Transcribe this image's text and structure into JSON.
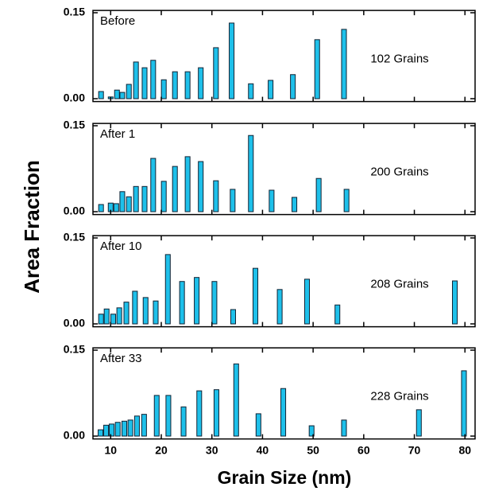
{
  "xlabel": "Grain Size (nm)",
  "ylabel": "Area Fraction",
  "chart_data": [
    {
      "type": "bar",
      "title": "Before",
      "annotation": "102 Grains",
      "color": "#1ec0ea",
      "x": [
        8.1,
        10,
        11.25,
        12.3,
        13.6,
        15,
        16.7,
        18.4,
        20.5,
        22.7,
        25.2,
        27.8,
        30.8,
        33.9,
        37.7,
        41.6,
        46,
        50.8,
        56.1
      ],
      "values": [
        0.0125,
        0.003,
        0.015,
        0.011,
        0.025,
        0.064,
        0.054,
        0.067,
        0.033,
        0.047,
        0.047,
        0.054,
        0.089,
        0.132,
        0.026,
        0.032,
        0.042,
        0.103,
        0.121
      ],
      "xlim": [
        6.5,
        82
      ],
      "ylim": [
        -0.005,
        0.154
      ],
      "yticks": [
        {
          "value": 0,
          "label": "0.00"
        },
        {
          "value": 0.15,
          "label": "0.15"
        }
      ]
    },
    {
      "type": "bar",
      "title": "After 1",
      "annotation": "200 Grains",
      "color": "#1ec0ea",
      "x": [
        8.1,
        10,
        11.1,
        12.3,
        13.6,
        15,
        16.7,
        18.4,
        20.5,
        22.7,
        25.2,
        27.8,
        30.8,
        34.1,
        37.7,
        41.8,
        46.3,
        51.1,
        56.6
      ],
      "values": [
        0.0125,
        0.015,
        0.014,
        0.035,
        0.026,
        0.044,
        0.044,
        0.093,
        0.053,
        0.079,
        0.096,
        0.0875,
        0.054,
        0.039,
        0.133,
        0.0375,
        0.025,
        0.058,
        0.039
      ],
      "xlim": [
        6.5,
        82
      ],
      "ylim": [
        -0.005,
        0.154
      ],
      "yticks": [
        {
          "value": 0,
          "label": "0.00"
        },
        {
          "value": 0.15,
          "label": "0.15"
        }
      ]
    },
    {
      "type": "bar",
      "title": "After 10",
      "annotation": "208 Grains",
      "color": "#1ec0ea",
      "x": [
        8.1,
        9.2,
        10.5,
        11.7,
        13.1,
        14.8,
        16.9,
        18.9,
        21.3,
        24.1,
        27,
        30.5,
        34.2,
        38.6,
        43.4,
        48.8,
        54.8,
        78
      ],
      "values": [
        0.017,
        0.026,
        0.017,
        0.028,
        0.038,
        0.057,
        0.046,
        0.04,
        0.121,
        0.074,
        0.081,
        0.074,
        0.025,
        0.097,
        0.06,
        0.078,
        0.033,
        0.075
      ],
      "xlim": [
        6.5,
        82
      ],
      "ylim": [
        -0.005,
        0.154
      ],
      "yticks": [
        {
          "value": 0,
          "label": "0.00"
        },
        {
          "value": 0.15,
          "label": "0.15"
        }
      ]
    },
    {
      "type": "bar",
      "title": "After 33",
      "annotation": "228 Grains",
      "color": "#1ec0ea",
      "x": [
        8,
        9.1,
        10.2,
        11.4,
        12.7,
        13.9,
        15.2,
        16.6,
        19.1,
        21.4,
        24.4,
        27.5,
        30.9,
        34.8,
        39.2,
        44.1,
        49.7,
        56.1,
        70.9,
        79.8
      ],
      "values": [
        0.011,
        0.019,
        0.021,
        0.024,
        0.026,
        0.028,
        0.035,
        0.038,
        0.071,
        0.071,
        0.051,
        0.079,
        0.081,
        0.126,
        0.039,
        0.083,
        0.018,
        0.028,
        0.046,
        0.114
      ],
      "xlim": [
        6.5,
        82
      ],
      "ylim": [
        -0.005,
        0.154
      ],
      "yticks": [
        {
          "value": 0,
          "label": "0.00"
        },
        {
          "value": 0.15,
          "label": "0.15"
        }
      ],
      "xticks": [
        10,
        20,
        30,
        40,
        50,
        60,
        70,
        80
      ]
    }
  ]
}
